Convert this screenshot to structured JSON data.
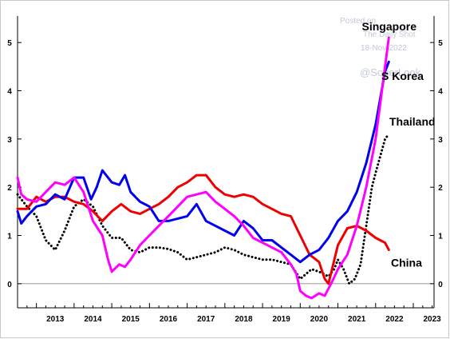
{
  "watermark": {
    "line1": "Posted on",
    "line2": "The Daily Shot",
    "line3": "18-Nov-2022",
    "handle": "@SoberLook"
  },
  "chart_data": {
    "type": "line",
    "title": "",
    "xlabel": "",
    "ylabel": "",
    "xlim": [
      2012.5,
      2023.55
    ],
    "ylim": [
      -0.5,
      5.55
    ],
    "x_ticks": [
      "2013",
      "2014",
      "2015",
      "2016",
      "2017",
      "2018",
      "2019",
      "2020",
      "2021",
      "2022",
      "2023"
    ],
    "y_ticks": [
      "0",
      "1",
      "2",
      "3",
      "4",
      "5"
    ],
    "grid": false,
    "zero_line": true,
    "colors": {
      "Singapore": "#ff00ff",
      "S Korea": "#0000ee",
      "Thailand": "#000000",
      "China": "#ee0000"
    },
    "series": [
      {
        "name": "Singapore",
        "style": "solid",
        "x": [
          2012.5,
          2012.6,
          2012.75,
          2013.0,
          2013.25,
          2013.5,
          2013.75,
          2014.0,
          2014.25,
          2014.5,
          2014.75,
          2014.9,
          2015.0,
          2015.2,
          2015.35,
          2015.5,
          2015.75,
          2016.0,
          2016.25,
          2016.5,
          2016.75,
          2017.0,
          2017.25,
          2017.5,
          2017.75,
          2018.0,
          2018.25,
          2018.5,
          2018.75,
          2019.0,
          2019.25,
          2019.5,
          2019.75,
          2019.9,
          2020.0,
          2020.15,
          2020.3,
          2020.5,
          2020.65,
          2020.75,
          2020.85,
          2021.0,
          2021.25,
          2021.5,
          2021.75,
          2022.0,
          2022.25,
          2022.35
        ],
        "values": [
          2.2,
          1.85,
          1.75,
          1.7,
          1.9,
          2.1,
          2.05,
          2.2,
          1.9,
          1.3,
          1.0,
          0.5,
          0.25,
          0.4,
          0.35,
          0.5,
          0.8,
          1.0,
          1.2,
          1.4,
          1.6,
          1.8,
          1.85,
          1.9,
          1.7,
          1.55,
          1.4,
          1.2,
          0.95,
          0.85,
          0.75,
          0.65,
          0.4,
          0.2,
          -0.15,
          -0.25,
          -0.3,
          -0.2,
          -0.25,
          -0.1,
          0.05,
          0.3,
          0.6,
          1.2,
          2.0,
          3.0,
          4.5,
          5.1
        ]
      },
      {
        "name": "S Korea",
        "style": "solid",
        "x": [
          2012.5,
          2012.6,
          2012.75,
          2013.0,
          2013.25,
          2013.5,
          2013.75,
          2014.0,
          2014.25,
          2014.45,
          2014.6,
          2014.75,
          2015.0,
          2015.2,
          2015.35,
          2015.5,
          2015.75,
          2016.0,
          2016.25,
          2016.5,
          2016.75,
          2017.0,
          2017.25,
          2017.5,
          2017.75,
          2018.0,
          2018.25,
          2018.5,
          2018.75,
          2019.0,
          2019.25,
          2019.5,
          2019.75,
          2020.0,
          2020.25,
          2020.5,
          2020.75,
          2021.0,
          2021.25,
          2021.5,
          2021.75,
          2022.0,
          2022.25,
          2022.35
        ],
        "values": [
          1.5,
          1.25,
          1.4,
          1.6,
          1.65,
          1.85,
          1.75,
          2.2,
          2.2,
          1.75,
          2.0,
          2.35,
          2.1,
          2.05,
          2.25,
          1.9,
          1.7,
          1.6,
          1.3,
          1.3,
          1.35,
          1.4,
          1.65,
          1.3,
          1.2,
          1.1,
          1.0,
          1.3,
          1.15,
          0.9,
          0.9,
          0.75,
          0.6,
          0.45,
          0.6,
          0.7,
          0.95,
          1.3,
          1.5,
          1.9,
          2.5,
          3.3,
          4.4,
          4.6
        ]
      },
      {
        "name": "Thailand",
        "style": "dotted",
        "x": [
          2012.5,
          2012.75,
          2013.0,
          2013.25,
          2013.5,
          2013.75,
          2014.0,
          2014.25,
          2014.5,
          2014.75,
          2015.0,
          2015.25,
          2015.5,
          2015.75,
          2016.0,
          2016.25,
          2016.5,
          2016.75,
          2017.0,
          2017.25,
          2017.5,
          2017.75,
          2018.0,
          2018.25,
          2018.5,
          2018.75,
          2019.0,
          2019.25,
          2019.5,
          2019.75,
          2020.0,
          2020.15,
          2020.3,
          2020.5,
          2020.75,
          2020.9,
          2021.0,
          2021.15,
          2021.3,
          2021.45,
          2021.6,
          2021.75,
          2021.9,
          2022.0,
          2022.25,
          2022.35
        ],
        "values": [
          1.85,
          1.6,
          1.4,
          0.9,
          0.7,
          1.1,
          1.6,
          1.75,
          1.6,
          1.2,
          0.95,
          0.95,
          0.7,
          0.65,
          0.75,
          0.75,
          0.72,
          0.65,
          0.5,
          0.55,
          0.6,
          0.65,
          0.75,
          0.7,
          0.6,
          0.55,
          0.5,
          0.5,
          0.45,
          0.4,
          0.1,
          0.2,
          0.3,
          0.25,
          0.15,
          0.3,
          0.5,
          0.3,
          0.0,
          0.1,
          0.4,
          1.2,
          2.0,
          2.3,
          3.0,
          3.1
        ]
      },
      {
        "name": "China",
        "style": "solid",
        "x": [
          2012.5,
          2012.75,
          2013.0,
          2013.25,
          2013.5,
          2013.75,
          2014.0,
          2014.25,
          2014.5,
          2014.75,
          2015.0,
          2015.25,
          2015.5,
          2015.75,
          2016.0,
          2016.25,
          2016.5,
          2016.75,
          2017.0,
          2017.25,
          2017.5,
          2017.75,
          2018.0,
          2018.25,
          2018.5,
          2018.75,
          2019.0,
          2019.25,
          2019.5,
          2019.75,
          2020.0,
          2020.25,
          2020.5,
          2020.65,
          2020.75,
          2021.0,
          2021.25,
          2021.5,
          2021.75,
          2022.0,
          2022.25,
          2022.35
        ],
        "values": [
          1.55,
          1.55,
          1.8,
          1.7,
          1.8,
          1.8,
          1.7,
          1.65,
          1.5,
          1.3,
          1.5,
          1.65,
          1.5,
          1.45,
          1.55,
          1.65,
          1.8,
          2.0,
          2.1,
          2.25,
          2.25,
          2.0,
          1.85,
          1.8,
          1.85,
          1.8,
          1.65,
          1.55,
          1.45,
          1.4,
          1.0,
          0.6,
          0.45,
          0.1,
          0.0,
          0.8,
          1.15,
          1.2,
          1.1,
          0.95,
          0.85,
          0.7
        ]
      }
    ],
    "annotations": [
      {
        "text": "Singapore",
        "series": "Singapore"
      },
      {
        "text": "S Korea",
        "series": "S Korea"
      },
      {
        "text": "Thailand",
        "series": "Thailand"
      },
      {
        "text": "China",
        "series": "China"
      }
    ]
  }
}
